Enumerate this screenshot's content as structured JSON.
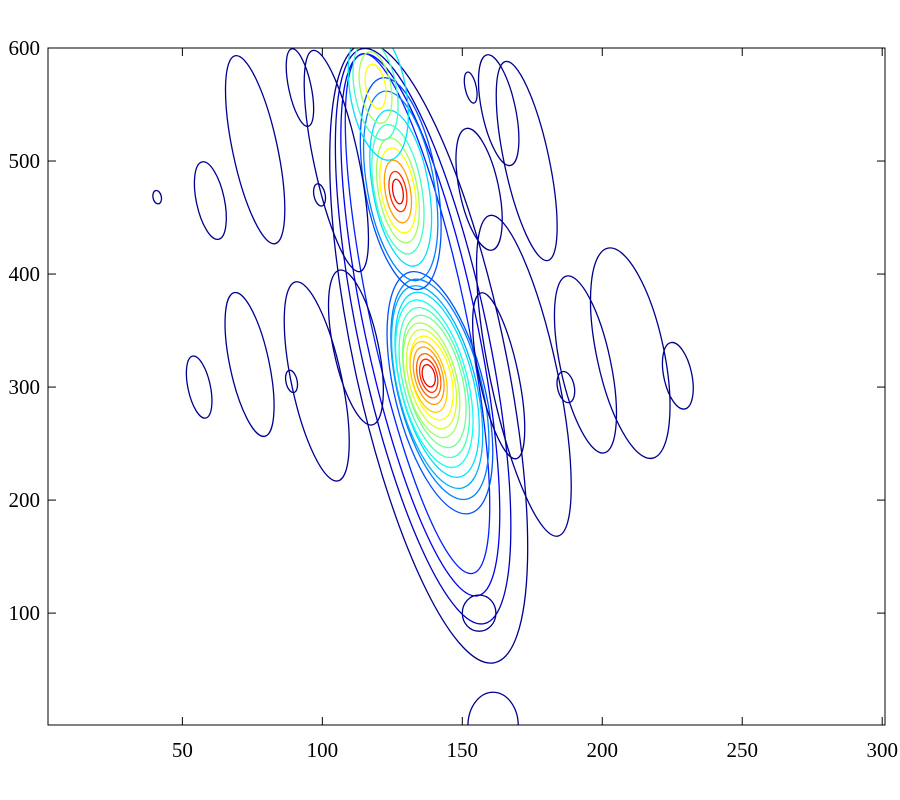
{
  "chart_data": {
    "type": "contour",
    "xlim": [
      2,
      301
    ],
    "ylim": [
      1,
      600
    ],
    "xticks": [
      50,
      100,
      150,
      200,
      250,
      300
    ],
    "yticks": [
      100,
      200,
      300,
      400,
      500,
      600
    ],
    "contours": [
      {
        "color": "#00008f",
        "ellipse": [
          138,
          330,
          27,
          280,
          -12
        ]
      },
      {
        "color": "#0000bf",
        "ellipse": [
          136,
          345,
          23,
          260,
          -12
        ]
      },
      {
        "color": "#0000ef",
        "ellipse": [
          135,
          355,
          20,
          245,
          -12
        ]
      },
      {
        "color": "#0020ff",
        "ellipse": [
          134,
          365,
          17,
          235,
          -12
        ]
      },
      {
        "color": "#0050ff",
        "ellipse": [
          142,
          295,
          16,
          110,
          -14
        ]
      },
      {
        "color": "#0080ff",
        "ellipse": [
          142,
          298,
          15,
          100,
          -14
        ]
      },
      {
        "color": "#00afff",
        "ellipse": [
          141,
          300,
          14,
          92,
          -14
        ]
      },
      {
        "color": "#00dfff",
        "ellipse": [
          141,
          302,
          13,
          84,
          -14
        ]
      },
      {
        "color": "#10ffef",
        "ellipse": [
          140,
          303,
          12,
          76,
          -14
        ]
      },
      {
        "color": "#40ffbf",
        "ellipse": [
          140,
          304,
          11,
          68,
          -14
        ]
      },
      {
        "color": "#70ff8f",
        "ellipse": [
          140,
          305,
          10,
          60,
          -14
        ]
      },
      {
        "color": "#a0ff60",
        "ellipse": [
          139,
          306,
          9,
          52,
          -14
        ]
      },
      {
        "color": "#cfff30",
        "ellipse": [
          139,
          307,
          8,
          45,
          -14
        ]
      },
      {
        "color": "#ffff00",
        "ellipse": [
          139,
          308,
          7,
          38,
          -14
        ]
      },
      {
        "color": "#ffcf00",
        "ellipse": [
          138,
          309,
          6,
          32,
          -14
        ]
      },
      {
        "color": "#ff9f00",
        "ellipse": [
          138,
          310,
          5,
          26,
          -14
        ]
      },
      {
        "color": "#ff6000",
        "ellipse": [
          138,
          310,
          4,
          20,
          -14
        ]
      },
      {
        "color": "#ff3000",
        "ellipse": [
          138,
          310,
          3,
          15,
          -14
        ]
      },
      {
        "color": "#ef0000",
        "ellipse": [
          138,
          310,
          2.2,
          10,
          -14
        ]
      },
      {
        "color": "#0050ff",
        "ellipse": [
          128,
          480,
          13,
          95,
          -10
        ]
      },
      {
        "color": "#0080ff",
        "ellipse": [
          128,
          478,
          12,
          85,
          -10
        ]
      },
      {
        "color": "#00dfff",
        "ellipse": [
          128,
          476,
          10,
          70,
          -10
        ]
      },
      {
        "color": "#40ffbf",
        "ellipse": [
          127,
          475,
          8.5,
          58,
          -10
        ]
      },
      {
        "color": "#a0ff60",
        "ellipse": [
          127,
          474,
          7,
          47,
          -10
        ]
      },
      {
        "color": "#ffff00",
        "ellipse": [
          127,
          474,
          6,
          38,
          -10
        ]
      },
      {
        "color": "#ff9f00",
        "ellipse": [
          127,
          473,
          4.5,
          28,
          -10
        ]
      },
      {
        "color": "#ff3000",
        "ellipse": [
          127,
          473,
          3,
          18,
          -10
        ]
      },
      {
        "color": "#ef0000",
        "ellipse": [
          127,
          473,
          1.8,
          11,
          -10
        ]
      },
      {
        "color": "#00dfff",
        "ellipse": [
          120,
          560,
          10,
          60,
          -10
        ]
      },
      {
        "color": "#40ffbf",
        "ellipse": [
          119,
          563,
          7.5,
          45,
          -10
        ]
      },
      {
        "color": "#a0ff60",
        "ellipse": [
          119,
          565,
          5.5,
          32,
          -10
        ]
      },
      {
        "color": "#ffff00",
        "ellipse": [
          119,
          566,
          3.5,
          20,
          -10
        ]
      },
      {
        "color": "#00008f",
        "ellipse": [
          56,
          300,
          4,
          28,
          -12
        ]
      },
      {
        "color": "#00008f",
        "ellipse": [
          74,
          320,
          7,
          65,
          -12
        ]
      },
      {
        "color": "#00008f",
        "ellipse": [
          98,
          305,
          9,
          90,
          -12
        ]
      },
      {
        "color": "#00008f",
        "ellipse": [
          89,
          305,
          2,
          10,
          -12
        ]
      },
      {
        "color": "#00008f",
        "ellipse": [
          112,
          335,
          8,
          70,
          -12
        ]
      },
      {
        "color": "#00008f",
        "ellipse": [
          163,
          310,
          7,
          75,
          -12
        ]
      },
      {
        "color": "#00008f",
        "ellipse": [
          172,
          310,
          12,
          145,
          -12
        ]
      },
      {
        "color": "#00008f",
        "ellipse": [
          187,
          300,
          3,
          14,
          -12
        ]
      },
      {
        "color": "#00008f",
        "ellipse": [
          194,
          320,
          9,
          80,
          -12
        ]
      },
      {
        "color": "#00008f",
        "ellipse": [
          210,
          330,
          12,
          95,
          -12
        ]
      },
      {
        "color": "#00008f",
        "ellipse": [
          227,
          310,
          5,
          30,
          -12
        ]
      },
      {
        "color": "#00008f",
        "ellipse": [
          60,
          465,
          5,
          35,
          -12
        ]
      },
      {
        "color": "#00008f",
        "ellipse": [
          41,
          468,
          1.5,
          6,
          -12
        ]
      },
      {
        "color": "#00008f",
        "ellipse": [
          76,
          510,
          8,
          85,
          -12
        ]
      },
      {
        "color": "#00008f",
        "ellipse": [
          99,
          470,
          2,
          10,
          -12
        ]
      },
      {
        "color": "#00008f",
        "ellipse": [
          92,
          565,
          4,
          35,
          -12
        ]
      },
      {
        "color": "#00008f",
        "ellipse": [
          105,
          500,
          8,
          100,
          -12
        ]
      },
      {
        "color": "#00008f",
        "ellipse": [
          156,
          475,
          7,
          55,
          -12
        ]
      },
      {
        "color": "#00008f",
        "ellipse": [
          163,
          545,
          6,
          50,
          -12
        ]
      },
      {
        "color": "#00008f",
        "ellipse": [
          153,
          565,
          2,
          14,
          -12
        ]
      },
      {
        "color": "#00008f",
        "ellipse": [
          173,
          500,
          8,
          90,
          -12
        ]
      },
      {
        "color": "#00008f",
        "ellipse": [
          156,
          100,
          6,
          16,
          0
        ]
      },
      {
        "color": "#00008f",
        "ellipse": [
          161,
          0,
          9,
          30,
          0
        ]
      }
    ]
  }
}
